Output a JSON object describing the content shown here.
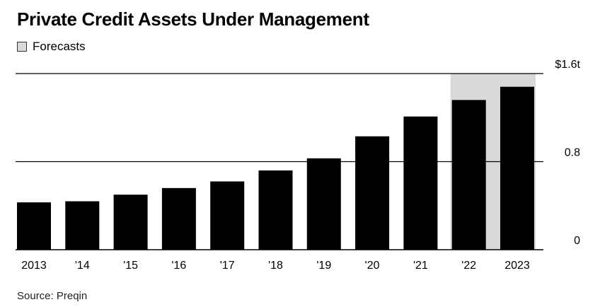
{
  "header": {
    "title": "Private Credit Assets Under Management",
    "legend_label": "Forecasts"
  },
  "footer": {
    "source": "Source: Preqin"
  },
  "colors": {
    "bar": "#000000",
    "forecast_band": "#d9d9d9",
    "gridline": "#000000"
  },
  "chart_data": {
    "type": "bar",
    "title": "Private Credit Assets Under Management",
    "xlabel": "",
    "ylabel": "",
    "categories": [
      "2013",
      "'14",
      "'15",
      "'16",
      "'17",
      "'18",
      "'19",
      "'20",
      "'21",
      "'22",
      "2023"
    ],
    "values": [
      0.43,
      0.44,
      0.5,
      0.56,
      0.62,
      0.72,
      0.83,
      1.03,
      1.21,
      1.36,
      1.48
    ],
    "forecast_categories": [
      "'22",
      "2023"
    ],
    "ylim": [
      0,
      1.6
    ],
    "yticks": [
      {
        "value": 0,
        "label": "0"
      },
      {
        "value": 0.8,
        "label": "0.8"
      },
      {
        "value": 1.6,
        "label": "$1.6t"
      }
    ],
    "grid": true,
    "legend": "top-left"
  }
}
